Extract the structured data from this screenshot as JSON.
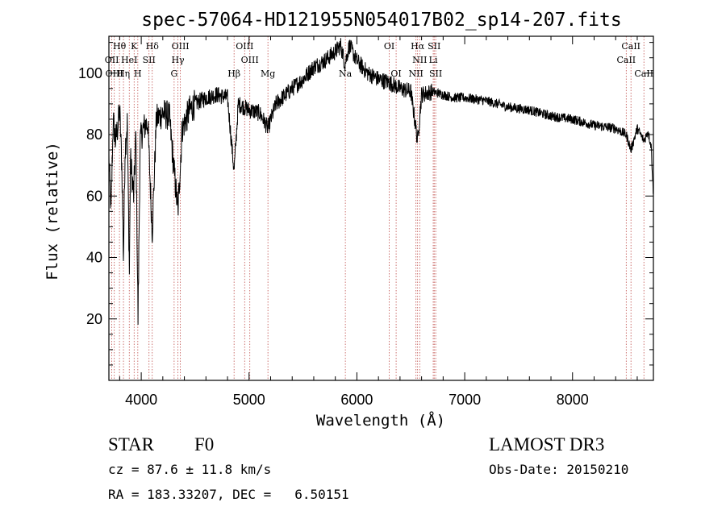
{
  "chart_data": {
    "type": "line",
    "title": "spec-57064-HD121955N054017B02_sp14-207.fits",
    "xlabel": "Wavelength (Å)",
    "ylabel": "Flux (relative)",
    "xlim": [
      3700,
      8750
    ],
    "ylim": [
      0,
      112
    ],
    "xticks": [
      4000,
      5000,
      6000,
      7000,
      8000
    ],
    "yticks": [
      20,
      40,
      60,
      80,
      100
    ],
    "series": [
      {
        "name": "flux",
        "anchors": [
          [
            3700,
            72
          ],
          [
            3720,
            55
          ],
          [
            3740,
            85
          ],
          [
            3760,
            78
          ],
          [
            3780,
            82
          ],
          [
            3800,
            88
          ],
          [
            3820,
            70
          ],
          [
            3835,
            40
          ],
          [
            3850,
            75
          ],
          [
            3870,
            84
          ],
          [
            3890,
            35
          ],
          [
            3900,
            72
          ],
          [
            3930,
            60
          ],
          [
            3950,
            80
          ],
          [
            3970,
            20
          ],
          [
            3990,
            78
          ],
          [
            4020,
            82
          ],
          [
            4060,
            84
          ],
          [
            4102,
            48
          ],
          [
            4140,
            85
          ],
          [
            4200,
            87
          ],
          [
            4260,
            86
          ],
          [
            4300,
            70
          ],
          [
            4340,
            55
          ],
          [
            4380,
            82
          ],
          [
            4450,
            88
          ],
          [
            4500,
            90
          ],
          [
            4600,
            92
          ],
          [
            4700,
            93
          ],
          [
            4800,
            92
          ],
          [
            4861,
            68
          ],
          [
            4900,
            90
          ],
          [
            5000,
            88
          ],
          [
            5100,
            87
          ],
          [
            5175,
            82
          ],
          [
            5250,
            90
          ],
          [
            5400,
            95
          ],
          [
            5500,
            98
          ],
          [
            5600,
            102
          ],
          [
            5700,
            104
          ],
          [
            5800,
            107
          ],
          [
            5850,
            109
          ],
          [
            5890,
            103
          ],
          [
            5930,
            109
          ],
          [
            6000,
            104
          ],
          [
            6100,
            100
          ],
          [
            6200,
            98
          ],
          [
            6300,
            97
          ],
          [
            6400,
            95
          ],
          [
            6500,
            94
          ],
          [
            6563,
            78
          ],
          [
            6600,
            93
          ],
          [
            6700,
            94
          ],
          [
            6800,
            93
          ],
          [
            6900,
            92
          ],
          [
            7000,
            92
          ],
          [
            7200,
            91
          ],
          [
            7400,
            89
          ],
          [
            7600,
            88
          ],
          [
            7800,
            86
          ],
          [
            8000,
            85
          ],
          [
            8200,
            83
          ],
          [
            8400,
            82
          ],
          [
            8498,
            80
          ],
          [
            8542,
            75
          ],
          [
            8600,
            82
          ],
          [
            8662,
            78
          ],
          [
            8700,
            81
          ],
          [
            8730,
            76
          ],
          [
            8750,
            60
          ]
        ]
      }
    ],
    "spectral_lines": [
      {
        "label": "Hθ",
        "wl": 3798,
        "row": 1
      },
      {
        "label": "K",
        "wl": 3934,
        "row": 1
      },
      {
        "label": "Hδ",
        "wl": 4102,
        "row": 1
      },
      {
        "label": "OIII",
        "wl": 4363,
        "row": 1
      },
      {
        "label": "OIII",
        "wl": 4959,
        "row": 1
      },
      {
        "label": "OI",
        "wl": 6300,
        "row": 1
      },
      {
        "label": "Hα",
        "wl": 6563,
        "row": 1
      },
      {
        "label": "SII",
        "wl": 6717,
        "row": 1
      },
      {
        "label": "CaII",
        "wl": 8542,
        "row": 1
      },
      {
        "label": "OII",
        "wl": 3727,
        "row": 2
      },
      {
        "label": "HeI",
        "wl": 3889,
        "row": 2
      },
      {
        "label": "SII",
        "wl": 4072,
        "row": 2
      },
      {
        "label": "Hγ",
        "wl": 4340,
        "row": 2
      },
      {
        "label": "OIII",
        "wl": 5007,
        "row": 2
      },
      {
        "label": "NII",
        "wl": 6583,
        "row": 2
      },
      {
        "label": "Li",
        "wl": 6708,
        "row": 2
      },
      {
        "label": "CaII",
        "wl": 8498,
        "row": 2
      },
      {
        "label": "OIII",
        "wl": 3750,
        "row": 3
      },
      {
        "label": "Hη",
        "wl": 3835,
        "row": 3
      },
      {
        "label": "H",
        "wl": 3968,
        "row": 3
      },
      {
        "label": "G",
        "wl": 4305,
        "row": 3
      },
      {
        "label": "Hβ",
        "wl": 4861,
        "row": 3
      },
      {
        "label": "Mg",
        "wl": 5175,
        "row": 3
      },
      {
        "label": "Na",
        "wl": 5893,
        "row": 3
      },
      {
        "label": "OI",
        "wl": 6364,
        "row": 3
      },
      {
        "label": "NII",
        "wl": 6548,
        "row": 3
      },
      {
        "label": "SII",
        "wl": 6731,
        "row": 3
      },
      {
        "label": "CaII",
        "wl": 8662,
        "row": 3
      }
    ]
  },
  "info": {
    "class": "STAR",
    "subclass": "F0",
    "survey": "LAMOST DR3",
    "cz": "cz = 87.6 ± 11.8 km/s",
    "obs_date": "Obs-Date: 20150210",
    "radec": "RA = 183.33207, DEC =   6.50151"
  },
  "colors": {
    "spectrum": "#000000",
    "line_markers": "#c0504d",
    "axes": "#000000"
  }
}
